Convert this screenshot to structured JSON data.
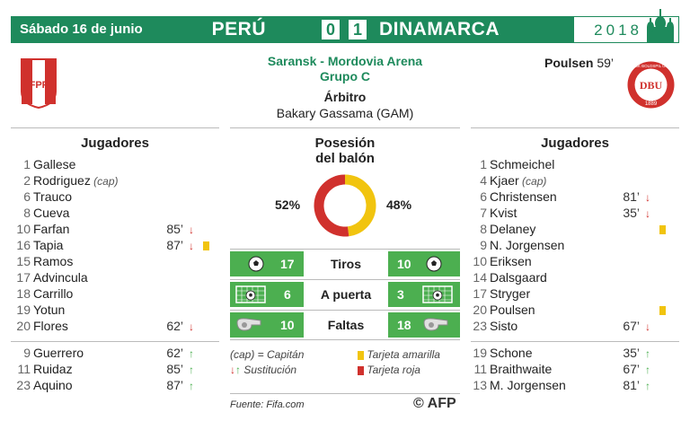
{
  "header": {
    "date": "Sábado 16 de junio",
    "team_home": "PERÚ",
    "score_home": "0",
    "score_away": "1",
    "team_away": "DINAMARCA",
    "year": "2018"
  },
  "logos": {
    "home": {
      "text": "FPF",
      "colors": [
        "#d0312d",
        "#ffffff"
      ]
    },
    "away": {
      "text": "DBU",
      "ring_text": "DANSK BOLDSPIL UNION",
      "year": "1889",
      "color": "#d0312d"
    }
  },
  "match": {
    "venue": "Saransk - Mordovia Arena",
    "group": "Grupo C",
    "referee_title": "Árbitro",
    "referee_name": "Bakary Gassama",
    "referee_country": "(GAM)"
  },
  "goal": {
    "scorer": "Poulsen",
    "minute": "59’"
  },
  "players_title": "Jugadores",
  "home_players": [
    {
      "num": "1",
      "name": "Gallese"
    },
    {
      "num": "2",
      "name": "Rodriguez",
      "cap": "(cap)"
    },
    {
      "num": "6",
      "name": "Trauco"
    },
    {
      "num": "8",
      "name": "Cueva"
    },
    {
      "num": "10",
      "name": "Farfan",
      "min": "85’",
      "sub": "down"
    },
    {
      "num": "16",
      "name": "Tapia",
      "min": "87’",
      "sub": "down",
      "card": "yellow"
    },
    {
      "num": "15",
      "name": "Ramos"
    },
    {
      "num": "17",
      "name": "Advincula"
    },
    {
      "num": "18",
      "name": "Carrillo"
    },
    {
      "num": "19",
      "name": "Yotun"
    },
    {
      "num": "20",
      "name": "Flores",
      "min": "62’",
      "sub": "down"
    }
  ],
  "home_subs": [
    {
      "num": "9",
      "name": "Guerrero",
      "min": "62’",
      "sub": "up"
    },
    {
      "num": "11",
      "name": "Ruidaz",
      "min": "85’",
      "sub": "up"
    },
    {
      "num": "23",
      "name": "Aquino",
      "min": "87’",
      "sub": "up"
    }
  ],
  "away_players": [
    {
      "num": "1",
      "name": "Schmeichel"
    },
    {
      "num": "4",
      "name": "Kjaer",
      "cap": "(cap)"
    },
    {
      "num": "6",
      "name": "Christensen",
      "min": "81’",
      "sub": "down"
    },
    {
      "num": "7",
      "name": "Kvist",
      "min": "35’",
      "sub": "down"
    },
    {
      "num": "8",
      "name": "Delaney",
      "card": "yellow"
    },
    {
      "num": "9",
      "name": "N. Jorgensen"
    },
    {
      "num": "10",
      "name": "Eriksen"
    },
    {
      "num": "14",
      "name": "Dalsgaard"
    },
    {
      "num": "17",
      "name": "Stryger"
    },
    {
      "num": "20",
      "name": "Poulsen",
      "card": "yellow"
    },
    {
      "num": "23",
      "name": "Sisto",
      "min": "67’",
      "sub": "down"
    }
  ],
  "away_subs": [
    {
      "num": "19",
      "name": "Schone",
      "min": "35’",
      "sub": "up"
    },
    {
      "num": "11",
      "name": "Braithwaite",
      "min": "67’",
      "sub": "up"
    },
    {
      "num": "13",
      "name": "M. Jorgensen",
      "min": "81’",
      "sub": "up"
    }
  ],
  "possession": {
    "title_line1": "Posesión",
    "title_line2": "del balón",
    "home_pct": "52%",
    "away_pct": "48%",
    "home_value": 52,
    "away_value": 48,
    "home_color": "#d0312d",
    "away_color": "#f1c40f"
  },
  "stats": [
    {
      "label": "Tiros",
      "home": "17",
      "away": "10",
      "icon": "ball-icon"
    },
    {
      "label": "A puerta",
      "home": "6",
      "away": "3",
      "icon": "goal-icon"
    },
    {
      "label": "Faltas",
      "home": "10",
      "away": "18",
      "icon": "whistle-icon"
    }
  ],
  "legend": {
    "cap": "(cap) = Capitán",
    "sub": "Sustitución",
    "yellow": "Tarjeta amarilla",
    "red": "Tarjeta roja"
  },
  "source": "Fuente: Fifa.com",
  "agency": "© AFP",
  "colors": {
    "green": "#1e8a5c",
    "stat_green": "#4caf50"
  }
}
